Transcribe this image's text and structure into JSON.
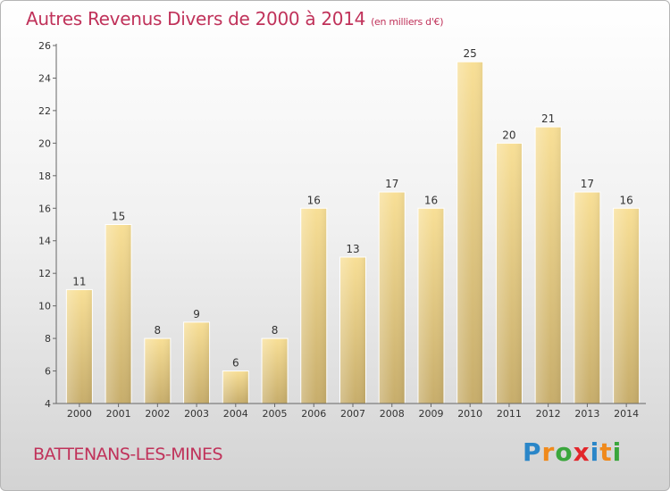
{
  "header": {
    "title": "Autres Revenus Divers de 2000 à 2014",
    "subtitle": "(en milliers d'€)"
  },
  "footer": {
    "commune": "BATTENANS-LES-MINES",
    "logo": {
      "letters": [
        "P",
        "r",
        "o",
        "x",
        "i",
        "t",
        "i"
      ],
      "colors": [
        "#2a86c8",
        "#f08a1c",
        "#3aa63c",
        "#e2262b",
        "#2a86c8",
        "#f08a1c",
        "#3aa63c"
      ]
    }
  },
  "colors": {
    "title": "#c0325a",
    "bar_top": "#f8df96",
    "bar_bottom": "#c7ad6b",
    "axis": "#666666",
    "text": "#333333"
  },
  "chart_data": {
    "type": "bar",
    "categories": [
      "2000",
      "2001",
      "2002",
      "2003",
      "2004",
      "2005",
      "2006",
      "2007",
      "2008",
      "2009",
      "2010",
      "2011",
      "2012",
      "2013",
      "2014"
    ],
    "values": [
      11,
      15,
      8,
      9,
      6,
      8,
      16,
      13,
      17,
      16,
      25,
      20,
      21,
      17,
      16
    ],
    "yticks": [
      4,
      6,
      8,
      10,
      12,
      14,
      16,
      18,
      20,
      22,
      24,
      26
    ],
    "ylim": [
      4,
      26
    ],
    "grid": false
  }
}
